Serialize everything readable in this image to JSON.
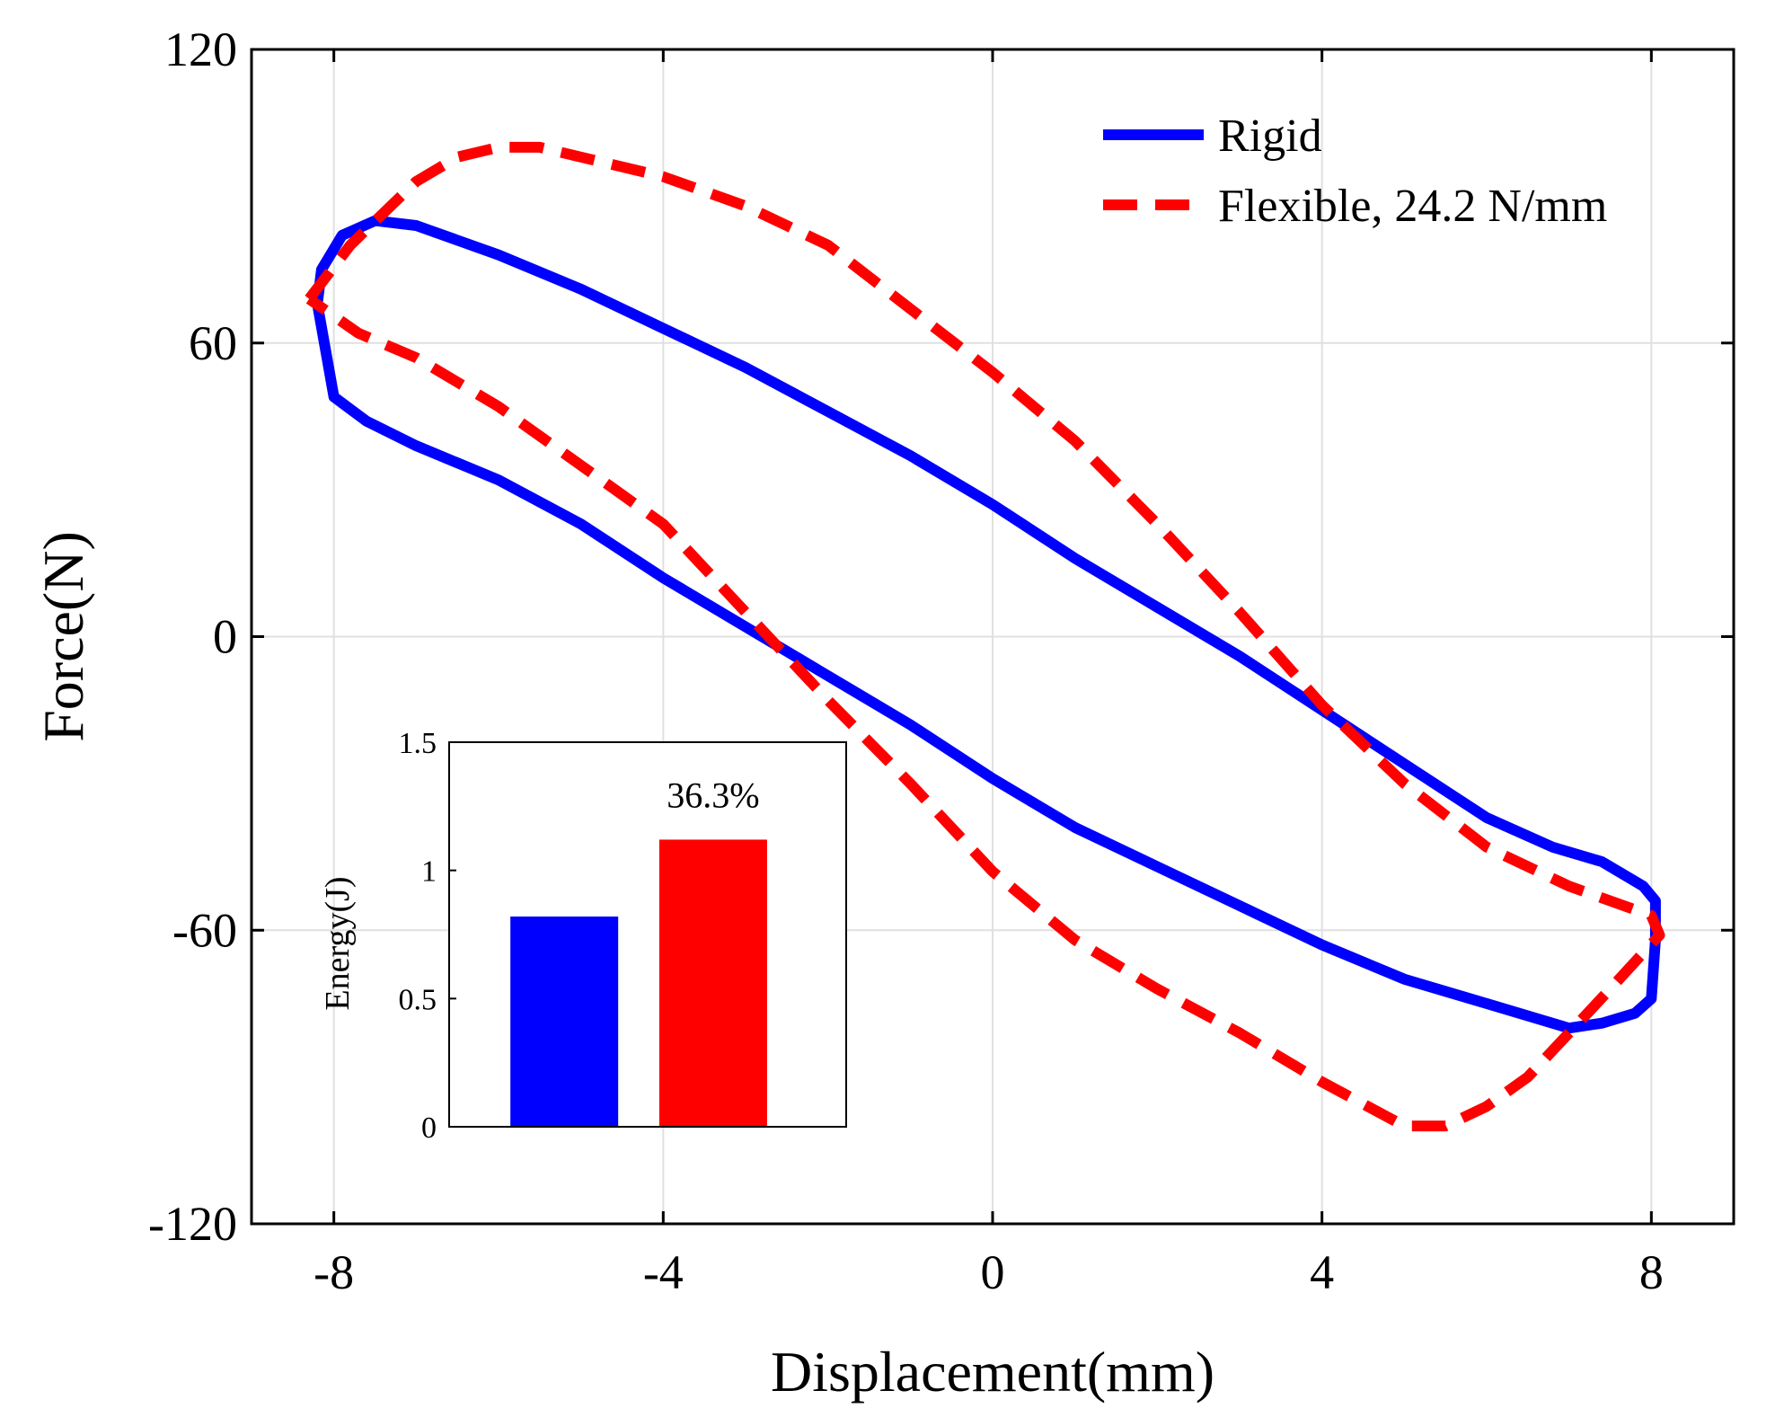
{
  "chart_data": [
    {
      "type": "line",
      "title": "",
      "xlabel": "Displacement(mm)",
      "ylabel": "Force(N)",
      "xlim": [
        -9,
        9
      ],
      "ylim": [
        -120,
        120
      ],
      "xticks": [
        -8,
        -4,
        0,
        4,
        8
      ],
      "yticks": [
        -120,
        -60,
        0,
        60,
        120
      ],
      "xtick_labels": [
        "-8",
        "-4",
        "0",
        "4",
        "8"
      ],
      "ytick_labels": [
        "-120",
        "-60",
        "0",
        "60",
        "120"
      ],
      "grid": true,
      "legend_position": "top-right",
      "series": [
        {
          "name": "Rigid",
          "color": "#0000ff",
          "style": "solid",
          "x": [
            -8.2,
            -8.15,
            -7.9,
            -7.5,
            -7.0,
            -6.0,
            -5.0,
            -4.0,
            -3.0,
            -2.0,
            -1.0,
            0.0,
            1.0,
            2.0,
            3.0,
            4.0,
            5.0,
            6.0,
            6.8,
            7.4,
            7.9,
            8.05,
            8.05,
            8.0,
            7.8,
            7.4,
            7.0,
            6.0,
            5.0,
            4.0,
            3.0,
            2.0,
            1.0,
            0.0,
            -1.0,
            -2.0,
            -3.0,
            -4.0,
            -5.0,
            -6.0,
            -7.0,
            -7.6,
            -8.0,
            -8.2
          ],
          "y": [
            68,
            75,
            82,
            85,
            84,
            78,
            71,
            63,
            55,
            46,
            37,
            27,
            16,
            6,
            -4,
            -15,
            -26,
            -37,
            -43,
            -46,
            -51,
            -54,
            -62,
            -74,
            -77,
            -79,
            -80,
            -75,
            -70,
            -63,
            -55,
            -47,
            -39,
            -29,
            -18,
            -8,
            2,
            12,
            23,
            32,
            39,
            44,
            49,
            68
          ]
        },
        {
          "name": "Flexible, 24.2 N/mm",
          "color": "#ff0000",
          "style": "dashed",
          "x": [
            -8.3,
            -7.8,
            -7.0,
            -6.5,
            -6.0,
            -5.5,
            -5.0,
            -4.0,
            -3.0,
            -2.0,
            -1.0,
            0.0,
            1.0,
            2.0,
            3.0,
            4.0,
            5.0,
            6.0,
            7.0,
            8.0,
            8.1,
            7.5,
            7.0,
            6.5,
            6.0,
            5.5,
            5.0,
            4.0,
            3.0,
            2.0,
            1.0,
            0.0,
            -1.0,
            -2.0,
            -3.0,
            -4.0,
            -5.0,
            -6.0,
            -7.0,
            -7.7,
            -8.3
          ],
          "y": [
            69,
            80,
            93,
            98,
            100,
            100,
            98,
            94,
            88,
            80,
            67,
            54,
            40,
            23,
            5,
            -14,
            -30,
            -43,
            -51,
            -57,
            -61,
            -72,
            -81,
            -90,
            -96,
            -100,
            -100,
            -91,
            -81,
            -72,
            -62,
            -48,
            -30,
            -13,
            5,
            23,
            35,
            47,
            57,
            62,
            69
          ]
        }
      ]
    },
    {
      "type": "bar",
      "title": "",
      "xlabel": "",
      "ylabel": "Energy(J)",
      "ylim": [
        0,
        1.5
      ],
      "yticks": [
        0,
        0.5,
        1,
        1.5
      ],
      "ytick_labels": [
        "0",
        "0.5",
        "1",
        "1.5"
      ],
      "categories": [
        "Rigid",
        "Flexible, 24.2 N/mm"
      ],
      "values": [
        0.82,
        1.12
      ],
      "colors": [
        "#0000ff",
        "#ff0000"
      ],
      "annotation": "36.3%",
      "grid": false
    }
  ]
}
